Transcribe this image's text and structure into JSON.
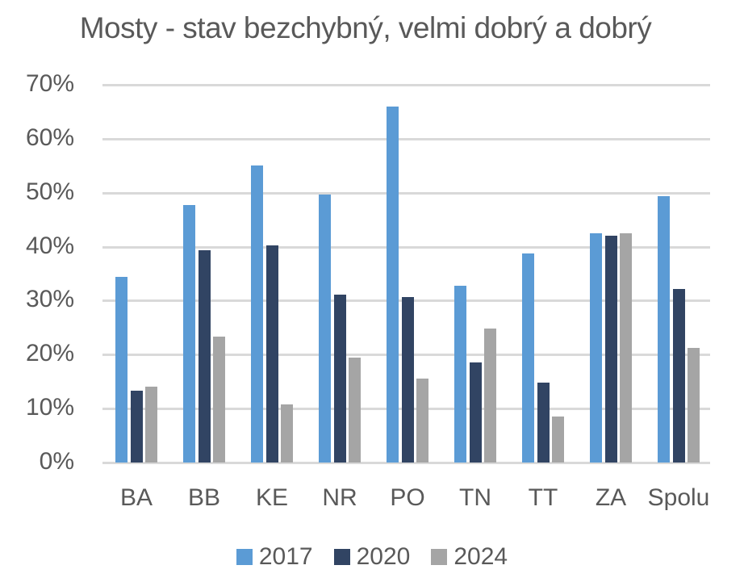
{
  "chart_data": {
    "type": "bar",
    "title": "Mosty - stav bezchybný, velmi dobrý a dobrý",
    "xlabel": "",
    "ylabel": "",
    "ylim": [
      0,
      70
    ],
    "yticks": [
      "0%",
      "10%",
      "20%",
      "30%",
      "40%",
      "50%",
      "60%",
      "70%"
    ],
    "grid": true,
    "legend_position": "bottom",
    "categories": [
      "BA",
      "BB",
      "KE",
      "NR",
      "PO",
      "TN",
      "TT",
      "ZA",
      "Spolu"
    ],
    "series": [
      {
        "name": "2017",
        "color": "#5b9bd5",
        "values": [
          34.4,
          47.7,
          55.0,
          49.6,
          66.0,
          32.7,
          38.8,
          42.5,
          49.4
        ]
      },
      {
        "name": "2020",
        "color": "#314463",
        "values": [
          13.3,
          39.4,
          40.2,
          31.1,
          30.7,
          18.5,
          14.8,
          42.1,
          32.2
        ]
      },
      {
        "name": "2024",
        "color": "#a5a5a5",
        "values": [
          14.0,
          23.4,
          10.7,
          19.4,
          15.5,
          24.8,
          8.5,
          42.5,
          21.3
        ]
      }
    ]
  }
}
